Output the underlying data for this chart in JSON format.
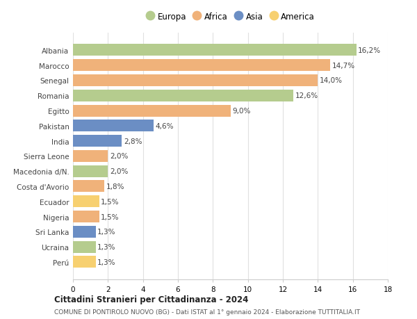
{
  "countries": [
    "Albania",
    "Marocco",
    "Senegal",
    "Romania",
    "Egitto",
    "Pakistan",
    "India",
    "Sierra Leone",
    "Macedonia d/N.",
    "Costa d'Avorio",
    "Ecuador",
    "Nigeria",
    "Sri Lanka",
    "Ucraina",
    "Perú"
  ],
  "values": [
    16.2,
    14.7,
    14.0,
    12.6,
    9.0,
    4.6,
    2.8,
    2.0,
    2.0,
    1.8,
    1.5,
    1.5,
    1.3,
    1.3,
    1.3
  ],
  "labels": [
    "16,2%",
    "14,7%",
    "14,0%",
    "12,6%",
    "9,0%",
    "4,6%",
    "2,8%",
    "2,0%",
    "2,0%",
    "1,8%",
    "1,5%",
    "1,5%",
    "1,3%",
    "1,3%",
    "1,3%"
  ],
  "continents": [
    "Europa",
    "Africa",
    "Africa",
    "Europa",
    "Africa",
    "Asia",
    "Asia",
    "Africa",
    "Europa",
    "Africa",
    "America",
    "Africa",
    "Asia",
    "Europa",
    "America"
  ],
  "continent_colors": {
    "Europa": "#b5cc8e",
    "Africa": "#f0b27a",
    "Asia": "#6b8ec4",
    "America": "#f7d070"
  },
  "legend_order": [
    "Europa",
    "Africa",
    "Asia",
    "America"
  ],
  "xlim": [
    0,
    18
  ],
  "xticks": [
    0,
    2,
    4,
    6,
    8,
    10,
    12,
    14,
    16,
    18
  ],
  "title": "Cittadini Stranieri per Cittadinanza - 2024",
  "subtitle": "COMUNE DI PONTIROLO NUOVO (BG) - Dati ISTAT al 1° gennaio 2024 - Elaborazione TUTTITALIA.IT",
  "bg_color": "#ffffff",
  "grid_color": "#e0e0e0",
  "bar_height": 0.78,
  "label_fontsize": 7.5,
  "ytick_fontsize": 7.5,
  "xtick_fontsize": 7.5,
  "legend_fontsize": 8.5
}
